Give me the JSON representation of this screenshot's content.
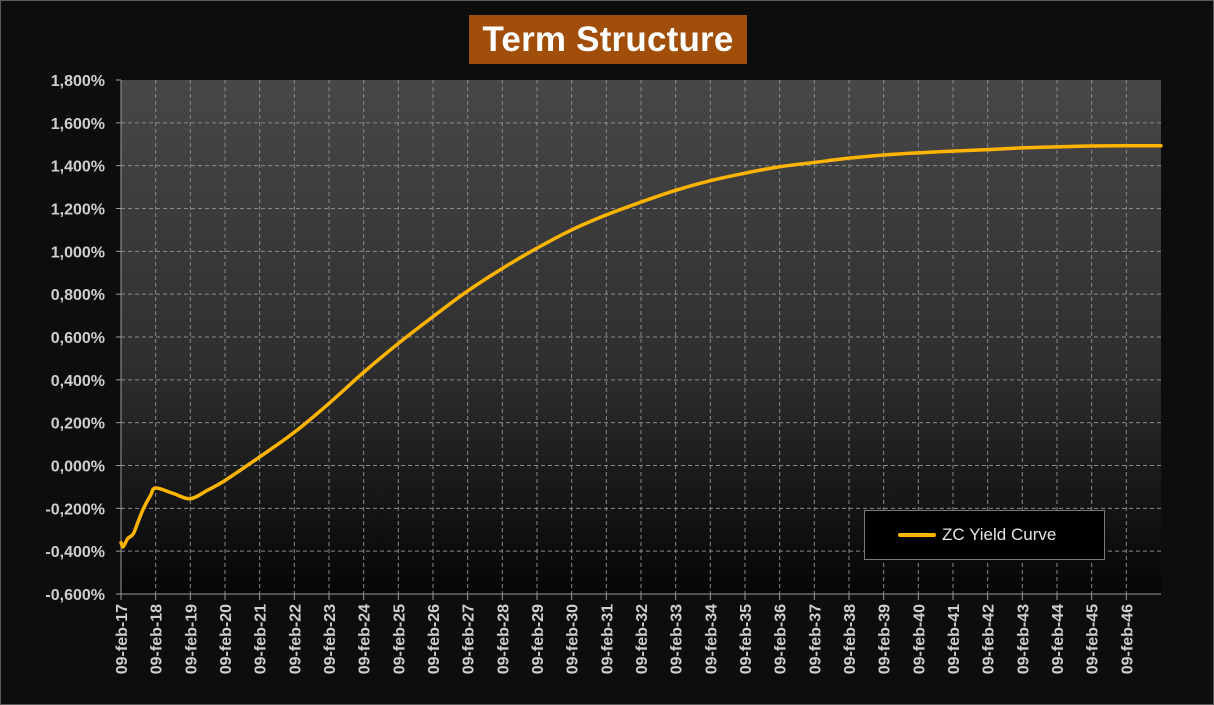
{
  "title": "Term Structure",
  "colors": {
    "background": "#0d0d0d",
    "title_bg": "#a04e0a",
    "plot_bg_top": "#474747",
    "plot_bg_bottom": "#050505",
    "line": "#ffb400",
    "grid": "#8a8a8a",
    "text": "#cfcfcf"
  },
  "chart_data": {
    "type": "line",
    "title": "Term Structure",
    "xlabel": "",
    "ylabel": "",
    "ylim": [
      -0.6,
      1.8
    ],
    "y_tick_values": [
      -0.6,
      -0.4,
      -0.2,
      0.0,
      0.2,
      0.4,
      0.6,
      0.8,
      1.0,
      1.2,
      1.4,
      1.6,
      1.8
    ],
    "y_tick_labels": [
      "-0,600%",
      "-0,400%",
      "-0,200%",
      "0,000%",
      "0,200%",
      "0,400%",
      "0,600%",
      "0,800%",
      "1,000%",
      "1,200%",
      "1,400%",
      "1,600%",
      "1,800%"
    ],
    "x_range_years": [
      2017,
      2047
    ],
    "x_tick_labels": [
      "09-feb-17",
      "09-feb-18",
      "09-feb-19",
      "09-feb-20",
      "09-feb-21",
      "09-feb-22",
      "09-feb-23",
      "09-feb-24",
      "09-feb-25",
      "09-feb-26",
      "09-feb-27",
      "09-feb-28",
      "09-feb-29",
      "09-feb-30",
      "09-feb-31",
      "09-feb-32",
      "09-feb-33",
      "09-feb-34",
      "09-feb-35",
      "09-feb-36",
      "09-feb-37",
      "09-feb-38",
      "09-feb-39",
      "09-feb-40",
      "09-feb-41",
      "09-feb-42",
      "09-feb-43",
      "09-feb-44",
      "09-feb-45",
      "09-feb-46"
    ],
    "grid": true,
    "legend_position": "bottom-right",
    "series": [
      {
        "name": "ZC Yield Curve",
        "color": "#ffb400",
        "x": [
          2017.0,
          2017.05,
          2017.1,
          2017.2,
          2017.35,
          2017.5,
          2017.65,
          2017.85,
          2018.0,
          2018.5,
          2019.0,
          2019.5,
          2020.0,
          2021.0,
          2022.0,
          2023.0,
          2024.0,
          2025.0,
          2026.0,
          2027.0,
          2028.0,
          2029.0,
          2030.0,
          2031.0,
          2032.0,
          2033.0,
          2034.0,
          2035.0,
          2036.0,
          2037.0,
          2038.0,
          2039.0,
          2040.0,
          2041.0,
          2042.0,
          2043.0,
          2044.0,
          2045.0,
          2046.0,
          2047.0
        ],
        "y": [
          -0.36,
          -0.38,
          -0.37,
          -0.34,
          -0.32,
          -0.26,
          -0.2,
          -0.14,
          -0.105,
          -0.13,
          -0.155,
          -0.115,
          -0.07,
          0.04,
          0.155,
          0.29,
          0.435,
          0.57,
          0.695,
          0.815,
          0.92,
          1.015,
          1.1,
          1.17,
          1.23,
          1.285,
          1.33,
          1.365,
          1.395,
          1.415,
          1.435,
          1.45,
          1.46,
          1.468,
          1.475,
          1.483,
          1.488,
          1.492,
          1.493,
          1.493
        ]
      }
    ]
  }
}
